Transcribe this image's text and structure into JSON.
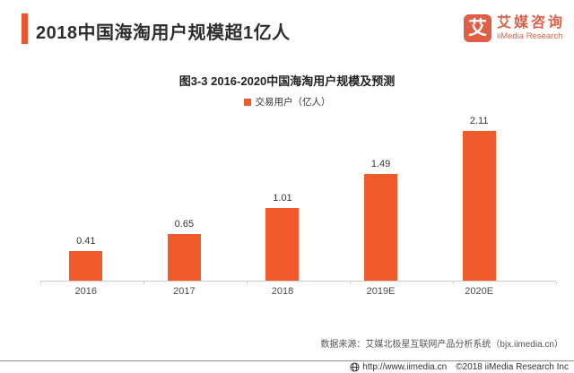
{
  "header": {
    "title": "2018中国海淘用户规模超1亿人"
  },
  "logo": {
    "glyph": "艾",
    "name_cn": "艾媒咨询",
    "name_en": "iiMedia Research"
  },
  "chart_data": {
    "type": "bar",
    "title": "图3-3 2016-2020中国海淘用户规模及预测",
    "legend": "交易用户（亿人）",
    "categories": [
      "2016",
      "2017",
      "2018",
      "2019E",
      "2020E"
    ],
    "values": [
      0.41,
      0.65,
      1.01,
      1.49,
      2.11
    ],
    "xlabel": "",
    "ylabel": "交易用户（亿人）",
    "ylim": [
      0,
      2.3
    ],
    "grid": false,
    "legend_position": "top-center",
    "bar_color": "#F15A2A"
  },
  "source_note": "数据来源：艾媒北极星互联网产品分析系统（bjx.iimedia.cn）",
  "footer": {
    "url": "http://www.iimedia.cn",
    "copyright": "©2018  iiMedia Research Inc"
  },
  "colors": {
    "accent_orange": "#E9552D",
    "bar_orange": "#F15A2A",
    "logo_orange": "#DD6046",
    "title_text": "#2d2d2d"
  }
}
